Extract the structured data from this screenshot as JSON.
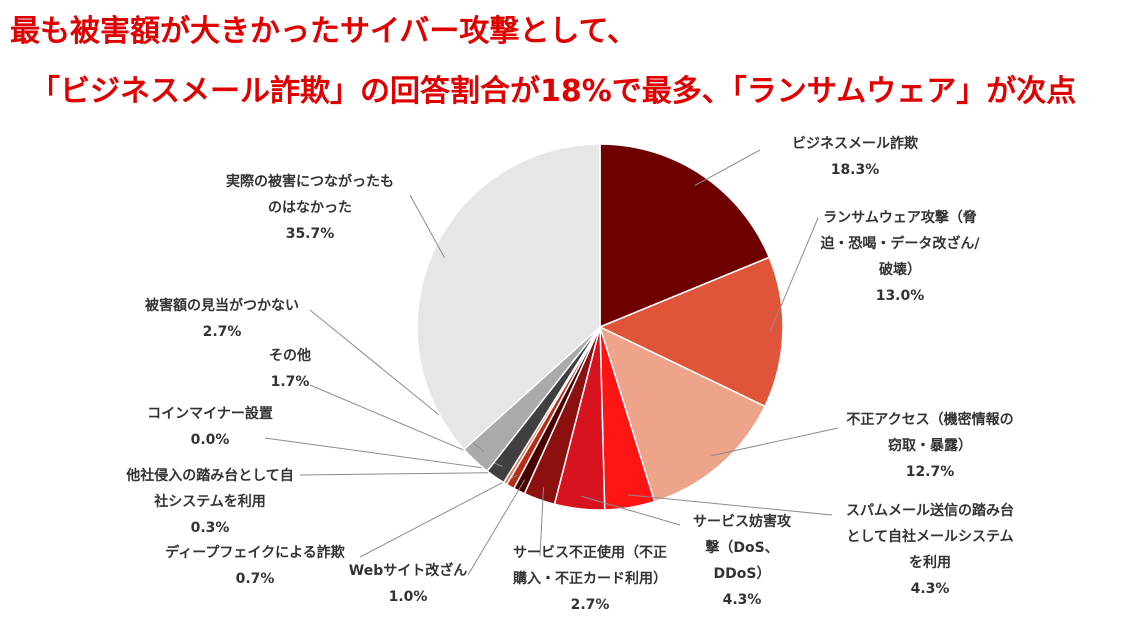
{
  "header": {
    "line1": "最も被害額が大きかったサイバー攻撃として、",
    "line2": "「ビジネスメール詐欺」の回答割合が18%で最多、「ランサムウェア」が次点"
  },
  "chart_data": {
    "type": "pie",
    "start_angle_deg": 0,
    "direction": "clockwise",
    "slices": [
      {
        "label": [
          "ビジネスメール詐欺"
        ],
        "value": 18.3,
        "value_label": "18.3%",
        "color": "#6e0000"
      },
      {
        "label": [
          "ランサムウェア攻撃（脅",
          "迫・恐喝・データ改ざん/",
          "破壊）"
        ],
        "value": 13.0,
        "value_label": "13.0%",
        "color": "#e0553a"
      },
      {
        "label": [
          "不正アクセス（機密情報の",
          "窃取・暴露）"
        ],
        "value": 12.7,
        "value_label": "12.7%",
        "color": "#eda48a"
      },
      {
        "label": [
          "スパムメール送信の踏み台",
          "として自社メールシステム",
          "を利用"
        ],
        "value": 4.3,
        "value_label": "4.3%",
        "color": "#ff1414"
      },
      {
        "label": [
          "サービス妨害攻",
          "撃（DoS、",
          "DDoS）"
        ],
        "value": 4.3,
        "value_label": "4.3%",
        "color": "#d8121e"
      },
      {
        "label": [
          "サービス不正使用（不正",
          "購入・不正カード利用）"
        ],
        "value": 2.7,
        "value_label": "2.7%",
        "color": "#8c1010"
      },
      {
        "label": [
          "Webサイト改ざん"
        ],
        "value": 1.0,
        "value_label": "1.0%",
        "color": "#4a0000"
      },
      {
        "label": [
          "ディープフェイクによる詐欺"
        ],
        "value": 0.7,
        "value_label": "0.7%",
        "color": "#b52e1a"
      },
      {
        "label": [
          "他社侵入の踏み台として自",
          "社システムを利用"
        ],
        "value": 0.3,
        "value_label": "0.3%",
        "color": "#e87050"
      },
      {
        "label": [
          "コインマイナー設置"
        ],
        "value": 0.0,
        "value_label": "0.0%",
        "color": "#888888"
      },
      {
        "label": [
          "その他"
        ],
        "value": 1.7,
        "value_label": "1.7%",
        "color": "#404040"
      },
      {
        "label": [
          "被害額の見当がつかない"
        ],
        "value": 2.7,
        "value_label": "2.7%",
        "color": "#aaaaaa"
      },
      {
        "label": [
          "実際の被害につながったも",
          "のはなかった"
        ],
        "value": 35.7,
        "value_label": "35.7%",
        "color": "#e6e6e6"
      }
    ]
  }
}
